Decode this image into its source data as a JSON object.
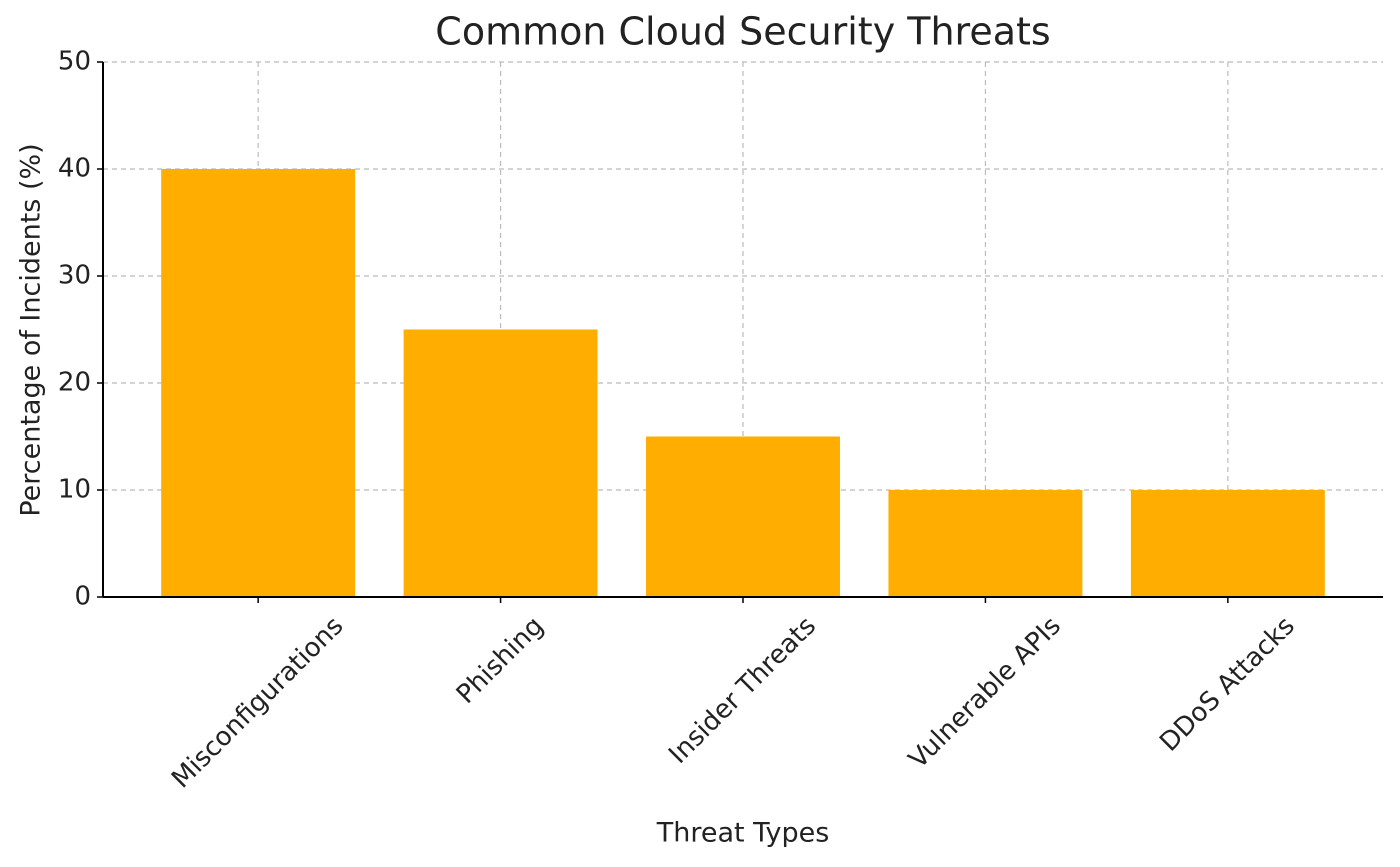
{
  "chart_data": {
    "type": "bar",
    "title": "Common Cloud Security Threats",
    "x_label": "Threat Types",
    "y_label": "Percentage of Incidents (%)",
    "categories": [
      "Misconfigurations",
      "Phishing",
      "Insider Threats",
      "Vulnerable APIs",
      "DDoS Attacks"
    ],
    "values": [
      40,
      25,
      15,
      10,
      10
    ],
    "color": "#ffae00",
    "ylim": [
      0,
      50
    ],
    "yticks": [
      0,
      10,
      20,
      30,
      40,
      50
    ],
    "grid": true
  }
}
